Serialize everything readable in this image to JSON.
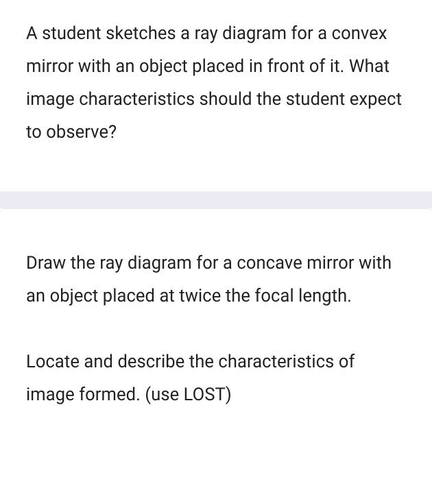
{
  "question1": {
    "text": "A student sketches a ray diagram for a convex mirror with an object placed in front of it. What image characteristics should the student expect to observe?"
  },
  "question2": {
    "para1": "Draw the ray diagram for a concave mirror with an object placed at twice the focal length.",
    "para2": " Locate and describe the characteristics of image formed. (use LOST)"
  }
}
